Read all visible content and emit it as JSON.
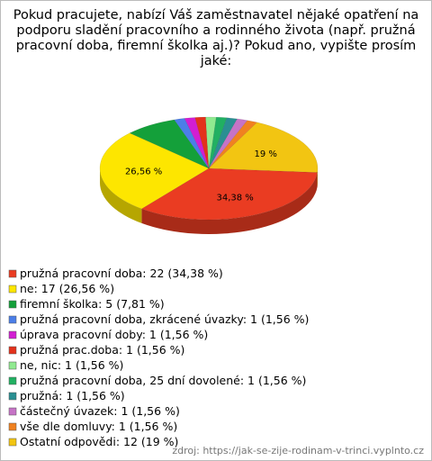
{
  "chart_data": {
    "type": "pie",
    "title": "Pokud pracujete, nabízí Váš zaměstnavatel nějaké opatření na\npodporu sladění pracovního a rodinného života (např. pružná\npracovní doba, firemní školka aj.)? Pokud ano, vypište prosím jaké:",
    "categories": [
      "pružná pracovní doba: 22 (34,38 %)",
      "ne: 17 (26,56 %)",
      "firemní školka: 5 (7,81 %)",
      "pružná pracovní doba, zkrácené úvazky: 1 (1,56 %)",
      "úprava pracovní doby: 1 (1,56 %)",
      "pružná prac.doba: 1 (1,56 %)",
      "ne, nic: 1 (1,56 %)",
      "pružná pracovní doba, 25 dní dovolené: 1 (1,56 %)",
      "pružná: 1 (1,56 %)",
      "částečný úvazek: 1 (1,56 %)",
      "vše dle domluvy: 1 (1,56 %)",
      "Ostatní odpovědi: 12 (19 %)"
    ],
    "values": [
      34.38,
      26.56,
      7.81,
      1.56,
      1.56,
      1.56,
      1.56,
      1.56,
      1.56,
      1.56,
      1.56,
      19
    ],
    "value_labels": [
      "34,38 %",
      "26,56 %",
      null,
      null,
      null,
      null,
      null,
      null,
      null,
      null,
      null,
      "19 %"
    ],
    "colors": [
      "#ea3c22",
      "#fde600",
      "#14a03a",
      "#4b7ee8",
      "#d21ed2",
      "#e3321c",
      "#90ea90",
      "#21b062",
      "#2a8f92",
      "#c673c6",
      "#f08120",
      "#f2c512"
    ],
    "source": "zdroj: https://jak-se-zije-rodinam-v-trinci.vyplnto.cz"
  }
}
